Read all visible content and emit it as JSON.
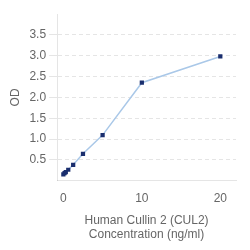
{
  "chart_data": {
    "type": "line",
    "x": [
      0,
      0.156,
      0.312,
      0.625,
      1.25,
      2.5,
      5,
      10,
      20
    ],
    "values": [
      0.152,
      0.182,
      0.208,
      0.265,
      0.383,
      0.648,
      1.096,
      2.352,
      2.982
    ],
    "xlabel": "Human Cullin 2 (CUL2)\nConcentration (ng/ml)",
    "ylabel": "OD",
    "xlim": [
      -0.8,
      22
    ],
    "ylim": [
      0.0,
      4.0
    ],
    "xticks": [
      0,
      10,
      20
    ],
    "yticks": [
      0.5,
      {
        "value": 1.0,
        "label": "1.0"
      },
      1.5,
      {
        "value": 2.0,
        "label": "2.0"
      },
      2.5,
      {
        "value": 3.0,
        "label": "3.0"
      },
      3.5
    ],
    "color": "#aac8e8",
    "colors": [
      "#1a2e6e",
      "#1a2e6e",
      "#1a2e6e",
      "#1a2e6e",
      "#1a2e6e",
      "#1a2e6e",
      "#1a2e6e",
      "#1a2e6e",
      "#1a2e6e"
    ],
    "marker": "square",
    "line_style": "solid",
    "grid": true
  }
}
